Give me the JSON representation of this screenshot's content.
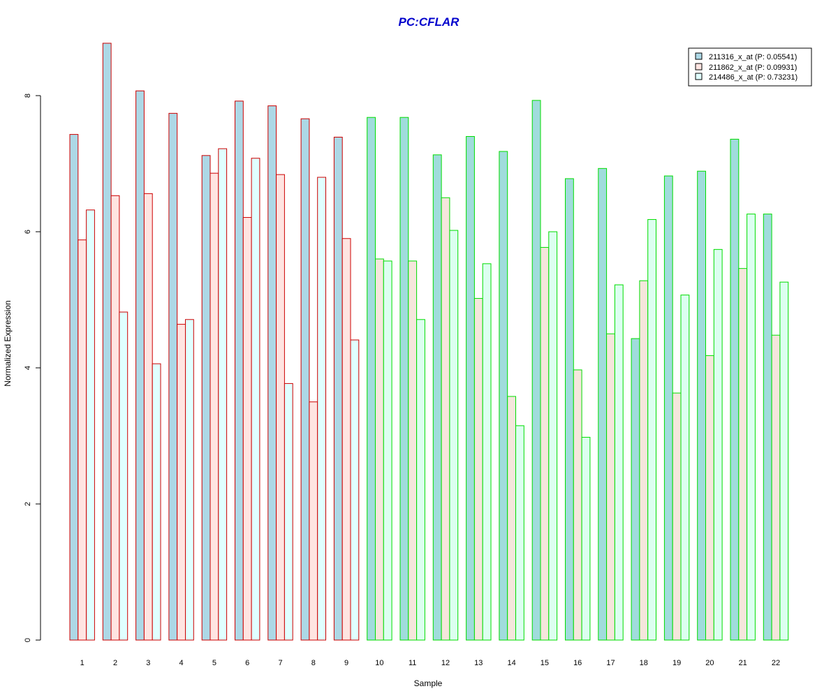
{
  "colors": {
    "title": "#0000CC",
    "group1_border": "#CC0000",
    "group2_border": "#00DD00",
    "group1_fills": [
      "#ADD8E6",
      "#FFE4E1",
      "#E0FFFF"
    ],
    "group2_fills": [
      "#A0DCDC",
      "#F5E6DC",
      "#DCFFF0"
    ]
  },
  "chart_data": {
    "type": "bar",
    "title": "PC:CFLAR",
    "xlabel": "Sample",
    "ylabel": "Normalized Expression",
    "ylim": [
      0,
      8.8
    ],
    "yticks": [
      0,
      2,
      4,
      6,
      8
    ],
    "grid": false,
    "legend_position": "top-right",
    "categories": [
      "1",
      "2",
      "3",
      "4",
      "5",
      "6",
      "7",
      "8",
      "9",
      "10",
      "11",
      "12",
      "13",
      "14",
      "15",
      "16",
      "17",
      "18",
      "19",
      "20",
      "21",
      "22"
    ],
    "sample_groups": [
      1,
      1,
      1,
      1,
      1,
      1,
      1,
      1,
      1,
      2,
      2,
      2,
      2,
      2,
      2,
      2,
      2,
      2,
      2,
      2,
      2,
      2
    ],
    "series": [
      {
        "name": "211316_x_at (P: 0.05541)",
        "values": [
          7.43,
          8.77,
          8.07,
          7.74,
          7.12,
          7.92,
          7.85,
          7.66,
          7.39,
          7.68,
          7.68,
          7.13,
          7.4,
          7.18,
          7.93,
          6.78,
          6.93,
          4.43,
          6.82,
          6.89,
          7.36,
          6.26
        ]
      },
      {
        "name": "211862_x_at (P: 0.09931)",
        "values": [
          5.88,
          6.53,
          6.56,
          4.64,
          6.86,
          6.21,
          6.84,
          3.5,
          5.9,
          5.6,
          5.57,
          6.5,
          5.02,
          3.58,
          5.77,
          3.97,
          4.5,
          5.28,
          3.63,
          4.18,
          5.46,
          4.48
        ]
      },
      {
        "name": "214486_x_at (P: 0.73231)",
        "values": [
          6.32,
          4.82,
          4.06,
          4.71,
          7.22,
          7.08,
          3.77,
          6.8,
          4.41,
          5.57,
          4.71,
          6.02,
          5.53,
          3.15,
          6.0,
          2.98,
          5.22,
          6.18,
          5.07,
          5.74,
          6.26,
          5.26
        ]
      }
    ]
  }
}
